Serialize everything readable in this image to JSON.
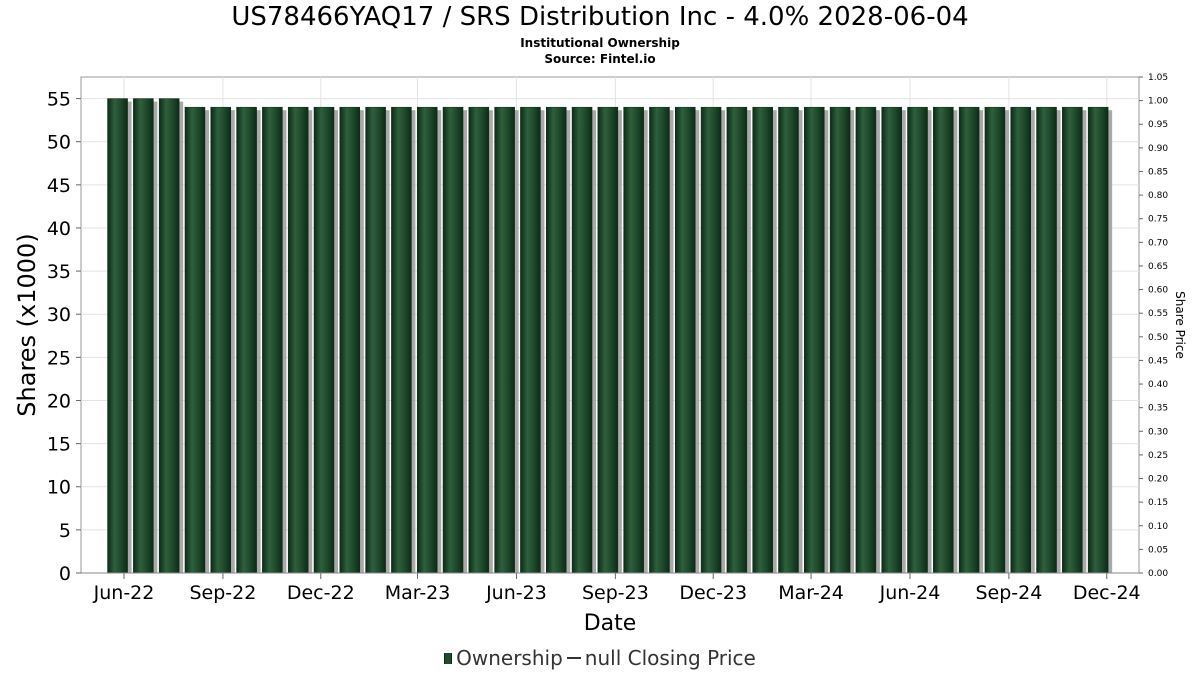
{
  "header": {
    "title": "US78466YAQ17 / SRS Distribution Inc - 4.0% 2028-06-04",
    "subtitle": "Institutional Ownership",
    "source": "Source: Fintel.io"
  },
  "legend": {
    "ownership_label": "Ownership",
    "price_label": "null Closing Price"
  },
  "colors": {
    "bar": "#1f4a2c",
    "bar_shadow": "#9a9a9a",
    "grid": "#e3e3e3"
  },
  "chart_data": {
    "type": "bar",
    "title": "US78466YAQ17 / SRS Distribution Inc - 4.0% 2028-06-04",
    "subtitle": "Institutional Ownership",
    "xlabel": "Date",
    "ylabel": "Shares (x1000)",
    "y2label": "Share Price",
    "ylim": [
      0,
      57.5
    ],
    "y2lim": [
      0,
      1.05
    ],
    "yticks": [
      "0",
      "5",
      "10",
      "15",
      "20",
      "25",
      "30",
      "35",
      "40",
      "45",
      "50",
      "55"
    ],
    "y2ticks": [
      "0.00",
      "0.05",
      "0.10",
      "0.15",
      "0.20",
      "0.25",
      "0.30",
      "0.35",
      "0.40",
      "0.45",
      "0.50",
      "0.55",
      "0.60",
      "0.65",
      "0.70",
      "0.75",
      "0.80",
      "0.85",
      "0.90",
      "0.95",
      "1.00",
      "1.05"
    ],
    "xticks": [
      "Jun-22",
      "Sep-22",
      "Dec-22",
      "Mar-23",
      "Jun-23",
      "Sep-23",
      "Dec-23",
      "Mar-24",
      "Jun-24",
      "Sep-24",
      "Dec-24"
    ],
    "x_date_range": [
      "2022-04-22",
      "2024-12-31"
    ],
    "x_tick_dates": [
      "2022-06-01",
      "2022-09-01",
      "2022-12-01",
      "2023-03-01",
      "2023-06-01",
      "2023-09-01",
      "2023-12-01",
      "2024-03-01",
      "2024-06-01",
      "2024-09-01",
      "2024-12-01"
    ],
    "grid": true,
    "legend_position": "bottom",
    "series": [
      {
        "name": "Ownership",
        "x": [
          "2022-05-26",
          "2022-06-19",
          "2022-07-13",
          "2022-08-06",
          "2022-08-30",
          "2022-09-23",
          "2022-10-17",
          "2022-11-10",
          "2022-12-04",
          "2022-12-28",
          "2023-01-21",
          "2023-02-14",
          "2023-03-10",
          "2023-04-03",
          "2023-04-27",
          "2023-05-21",
          "2023-06-14",
          "2023-07-08",
          "2023-08-01",
          "2023-08-25",
          "2023-09-18",
          "2023-10-12",
          "2023-11-05",
          "2023-11-29",
          "2023-12-23",
          "2024-01-16",
          "2024-02-09",
          "2024-03-04",
          "2024-03-28",
          "2024-04-21",
          "2024-05-15",
          "2024-06-08",
          "2024-07-02",
          "2024-07-26",
          "2024-08-19",
          "2024-09-12",
          "2024-10-06",
          "2024-10-30",
          "2024-11-23"
        ],
        "values": [
          55,
          55,
          55,
          54,
          54,
          54,
          54,
          54,
          54,
          54,
          54,
          54,
          54,
          54,
          54,
          54,
          54,
          54,
          54,
          54,
          54,
          54,
          54,
          54,
          54,
          54,
          54,
          54,
          54,
          54,
          54,
          54,
          54,
          54,
          54,
          54,
          54,
          54,
          54
        ]
      },
      {
        "name": "null Closing Price",
        "x": [],
        "values": []
      }
    ]
  }
}
